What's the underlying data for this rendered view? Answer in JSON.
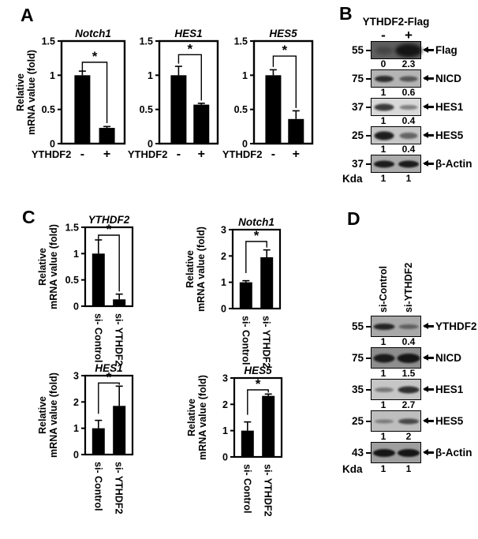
{
  "panels": {
    "a": {
      "label": "A"
    },
    "b": {
      "label": "B",
      "header": "YTHDF2-Flag",
      "lane_labels": [
        "-",
        "+"
      ],
      "kda_label": "Kda",
      "rows": [
        {
          "mw": "55",
          "protein": "Flag",
          "film_bg": "#5f5f5f",
          "bands": [
            {
              "opacity": 0.35,
              "w": 22,
              "h": 10,
              "blur": 2.5
            },
            {
              "opacity": 1,
              "w": 34,
              "h": 17,
              "blur": 2.5
            }
          ],
          "values": [
            "0",
            "2.3"
          ]
        },
        {
          "mw": "75",
          "protein": "NICD",
          "film_bg": "#b4b4b4",
          "bands": [
            {
              "opacity": 0.85,
              "w": 24,
              "h": 8,
              "blur": 1.2
            },
            {
              "opacity": 0.6,
              "w": 23,
              "h": 7,
              "blur": 1.2
            }
          ],
          "values": [
            "1",
            "0.6"
          ]
        },
        {
          "mw": "37",
          "protein": "HES1",
          "film_bg": "#d9d9d9",
          "bands": [
            {
              "opacity": 0.8,
              "w": 25,
              "h": 9,
              "blur": 1.2
            },
            {
              "opacity": 0.45,
              "w": 23,
              "h": 6,
              "blur": 1.2
            }
          ],
          "values": [
            "1",
            "0.4"
          ]
        },
        {
          "mw": "25",
          "protein": "HES5",
          "film_bg": "#c6c6c6",
          "bands": [
            {
              "opacity": 0.95,
              "w": 25,
              "h": 11,
              "blur": 1.2
            },
            {
              "opacity": 0.55,
              "w": 23,
              "h": 8,
              "blur": 1.2
            }
          ],
          "values": [
            "1",
            "0.4"
          ]
        },
        {
          "mw": "37",
          "protein": "β-Actin",
          "film_bg": "#ababab",
          "bands": [
            {
              "opacity": 0.95,
              "w": 26,
              "h": 9,
              "blur": 1.0
            },
            {
              "opacity": 0.95,
              "w": 26,
              "h": 9,
              "blur": 1.0
            }
          ],
          "values": [
            "1",
            "1"
          ]
        }
      ]
    },
    "c": {
      "label": "C"
    },
    "d": {
      "label": "D",
      "lane_labels": [
        "si-Control",
        "si-YTHDF2"
      ],
      "kda_label": "Kda",
      "rows": [
        {
          "mw": "55",
          "protein": "YTHDF2",
          "film_bg": "#a8a8a8",
          "bands": [
            {
              "opacity": 0.9,
              "w": 27,
              "h": 8,
              "blur": 1.2
            },
            {
              "opacity": 0.5,
              "w": 25,
              "h": 6,
              "blur": 1.4
            }
          ],
          "values": [
            "1",
            "0.4"
          ]
        },
        {
          "mw": "75",
          "protein": "NICD",
          "film_bg": "#8e8e8e",
          "bands": [
            {
              "opacity": 0.95,
              "w": 27,
              "h": 11,
              "blur": 1.2
            },
            {
              "opacity": 1,
              "w": 29,
              "h": 12,
              "blur": 1.2
            }
          ],
          "values": [
            "1",
            "1.5"
          ]
        },
        {
          "mw": "35",
          "protein": "HES1",
          "film_bg": "#c6c6c6",
          "bands": [
            {
              "opacity": 0.45,
              "w": 24,
              "h": 6,
              "blur": 1.4
            },
            {
              "opacity": 0.85,
              "w": 27,
              "h": 9,
              "blur": 1.2
            }
          ],
          "values": [
            "1",
            "2.7"
          ]
        },
        {
          "mw": "25",
          "protein": "HES5",
          "film_bg": "#bebebe",
          "bands": [
            {
              "opacity": 0.4,
              "w": 24,
              "h": 5,
              "blur": 1.4
            },
            {
              "opacity": 0.7,
              "w": 26,
              "h": 7,
              "blur": 1.2
            }
          ],
          "values": [
            "1",
            "2"
          ]
        },
        {
          "mw": "43",
          "protein": "β-Actin",
          "film_bg": "#9e9e9e",
          "bands": [
            {
              "opacity": 1,
              "w": 28,
              "h": 10,
              "blur": 1.0
            },
            {
              "opacity": 1,
              "w": 28,
              "h": 10,
              "blur": 1.0
            }
          ],
          "values": [
            "1",
            "1"
          ]
        }
      ]
    }
  },
  "chart_data": [
    {
      "panel": "A",
      "type": "bar",
      "title": "Notch1",
      "ylabel": "Relative mRNA value (fold)",
      "xlabel_prefix": "YTHDF2",
      "categories": [
        "-",
        "+"
      ],
      "values": [
        1.0,
        0.23
      ],
      "errors": [
        0.06,
        0.02
      ],
      "ylim": [
        0,
        1.5
      ],
      "yticks": [
        0,
        0.5,
        1,
        1.5
      ],
      "grid": false,
      "significance": "*",
      "bracket": {
        "top": 1.19,
        "left_to": 1.06,
        "right_to": 0.3
      }
    },
    {
      "panel": "A",
      "type": "bar",
      "title": "HES1",
      "ylabel": "",
      "xlabel_prefix": "YTHDF2",
      "categories": [
        "-",
        "+"
      ],
      "values": [
        1.0,
        0.57
      ],
      "errors": [
        0.13,
        0.02
      ],
      "ylim": [
        0,
        1.5
      ],
      "yticks": [
        0,
        0.5,
        1,
        1.5
      ],
      "grid": false,
      "significance": "*",
      "bracket": {
        "top": 1.3,
        "left_to": 1.17,
        "right_to": 0.63
      }
    },
    {
      "panel": "A",
      "type": "bar",
      "title": "HES5",
      "ylabel": "",
      "xlabel_prefix": "YTHDF2",
      "categories": [
        "-",
        "+"
      ],
      "values": [
        1.0,
        0.36
      ],
      "errors": [
        0.08,
        0.12
      ],
      "ylim": [
        0,
        1.5
      ],
      "yticks": [
        0,
        0.5,
        1,
        1.5
      ],
      "grid": false,
      "significance": "*",
      "bracket": {
        "top": 1.28,
        "left_to": 1.12,
        "right_to": 0.52
      }
    },
    {
      "panel": "C",
      "type": "bar",
      "title": "YTHDF2",
      "ylabel": "Relative mRNA value (fold)",
      "categories": [
        "si- Control",
        "si- YTHDF2"
      ],
      "values": [
        1.0,
        0.13
      ],
      "errors": [
        0.26,
        0.1
      ],
      "ylim": [
        0,
        1.5
      ],
      "yticks": [
        0,
        0.5,
        1,
        1.5
      ],
      "grid": false,
      "significance": "*",
      "bracket": {
        "top": 1.35,
        "left_to": 1.27,
        "right_to": 0.28
      }
    },
    {
      "panel": "C",
      "type": "bar",
      "title": "Notch1",
      "ylabel": "Relative mRNA value (fold)",
      "categories": [
        "si- Control",
        "si- YTHDF2"
      ],
      "values": [
        1.0,
        1.95
      ],
      "errors": [
        0.06,
        0.28
      ],
      "ylim": [
        0,
        3
      ],
      "yticks": [
        0,
        1,
        2,
        3
      ],
      "grid": false,
      "significance": "*",
      "bracket": {
        "top": 2.55,
        "left_to": 1.35,
        "right_to": 2.32
      }
    },
    {
      "panel": "C",
      "type": "bar",
      "title": "HES1",
      "ylabel": "Relative mRNA value (fold)",
      "categories": [
        "si- Control",
        "si- YTHDF2"
      ],
      "values": [
        1.0,
        1.85
      ],
      "errors": [
        0.3,
        0.75
      ],
      "ylim": [
        0,
        3
      ],
      "yticks": [
        0,
        1,
        2,
        3
      ],
      "grid": false,
      "significance": "*",
      "bracket": {
        "top": 2.72,
        "left_to": 1.55,
        "right_to": 2.65
      }
    },
    {
      "panel": "C",
      "type": "bar",
      "title": "HES5",
      "ylabel": "Relative mRNA value (fold)",
      "categories": [
        "si- Control",
        "si- YTHDF2"
      ],
      "values": [
        1.0,
        2.32
      ],
      "errors": [
        0.33,
        0.07
      ],
      "ylim": [
        0,
        3
      ],
      "yticks": [
        0,
        1,
        2,
        3
      ],
      "grid": false,
      "significance": "*",
      "bracket": {
        "top": 2.55,
        "left_to": 1.6,
        "right_to": 2.45
      }
    }
  ]
}
